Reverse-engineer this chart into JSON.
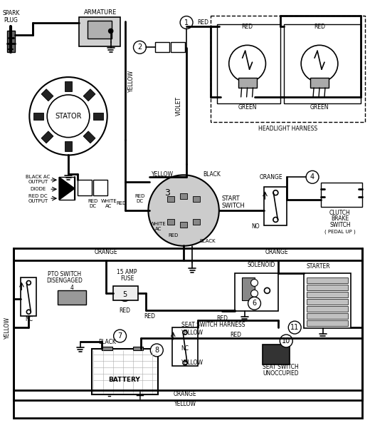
{
  "bg": "#ffffff",
  "labels": {
    "spark_plug": "SPARK\nPLUG",
    "armature": "ARMATURE",
    "stator": "STATOR",
    "black_ac": "BLACK AC\nOUTPUT",
    "diode": "DIODE",
    "red_dc_out": "RED DC\nOUTPUT",
    "yellow": "YELLOW",
    "violet": "VIOLET",
    "headlight_harness": "HEADLIGHT HARNESS",
    "red": "RED",
    "green": "GREEN",
    "start_switch": "START\nSWITCH",
    "black": "BLACK",
    "orange": "ORANGE",
    "no": "NO",
    "clutch_brake": "CLUTCH\nBRAKE\nSWITCH\n( PEDAL UP )",
    "pto_switch": "PTO SWITCH\nDISENGAGED",
    "fuse_15": "15 AMP\nFUSE",
    "seat_harness": "SEAT SWITCH HARNESS",
    "solenoid": "SOLENOID",
    "starter": "STARTER",
    "battery": "BATTERY",
    "seat_switch": "SEAT SWITCH\nUNOCCUPIED",
    "nc": "NC",
    "red_dc": "RED\nDC",
    "white_ac": "WHITE\nAC",
    "minus": "-",
    "plus": "+"
  }
}
